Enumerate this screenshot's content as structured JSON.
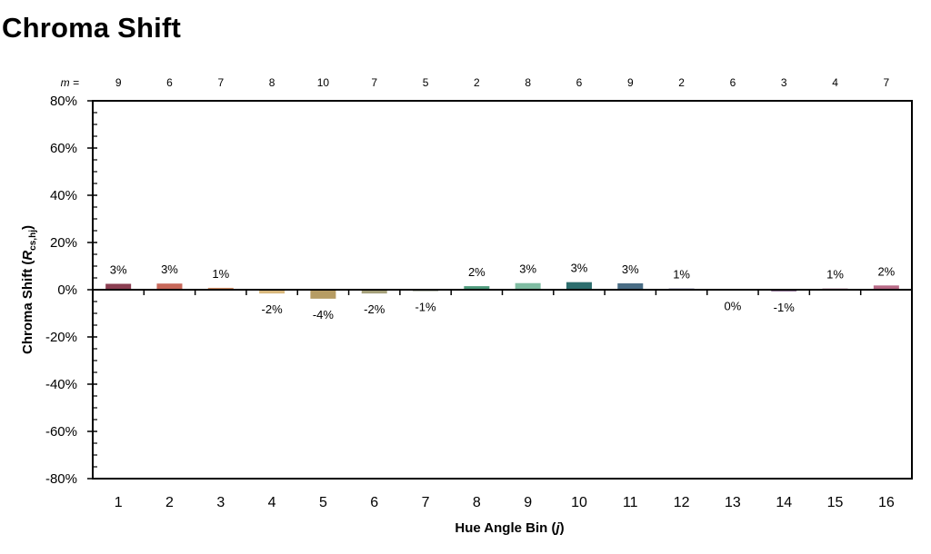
{
  "chart_data": {
    "type": "bar",
    "title": "Chroma Shift",
    "xlabel": "Hue Angle Bin (j)",
    "ylabel": "Chroma Shift (Rcs,hj)",
    "m_prefix": "m =",
    "categories": [
      "1",
      "2",
      "3",
      "4",
      "5",
      "6",
      "7",
      "8",
      "9",
      "10",
      "11",
      "12",
      "13",
      "14",
      "15",
      "16"
    ],
    "m_values": [
      9,
      6,
      7,
      8,
      10,
      7,
      5,
      2,
      8,
      6,
      9,
      2,
      6,
      3,
      4,
      7
    ],
    "values": [
      0.025,
      0.026,
      0.008,
      -0.016,
      -0.038,
      -0.016,
      -0.006,
      0.015,
      0.028,
      0.032,
      0.027,
      0.005,
      -0.002,
      -0.007,
      0.005,
      0.018
    ],
    "data_labels": [
      "3%",
      "3%",
      "1%",
      "-2%",
      "-4%",
      "-2%",
      "-1%",
      "2%",
      "3%",
      "3%",
      "3%",
      "1%",
      "0%",
      "-1%",
      "1%",
      "2%"
    ],
    "bar_colors": [
      "#8b3f52",
      "#c7685a",
      "#d28c64",
      "#d9b97e",
      "#b69c63",
      "#a5a07a",
      "#8e9784",
      "#4e9a7c",
      "#7fbca2",
      "#2d6e6e",
      "#4a6d85",
      "#5f5e8c",
      "#6e5a8c",
      "#7e5d87",
      "#9a5d80",
      "#b86a87"
    ],
    "ylim": [
      -0.8,
      0.8
    ],
    "y_ticks": [
      "80%",
      "60%",
      "40%",
      "20%",
      "0%",
      "-20%",
      "-40%",
      "-60%",
      "-80%"
    ],
    "grid": false,
    "legend": "none"
  }
}
